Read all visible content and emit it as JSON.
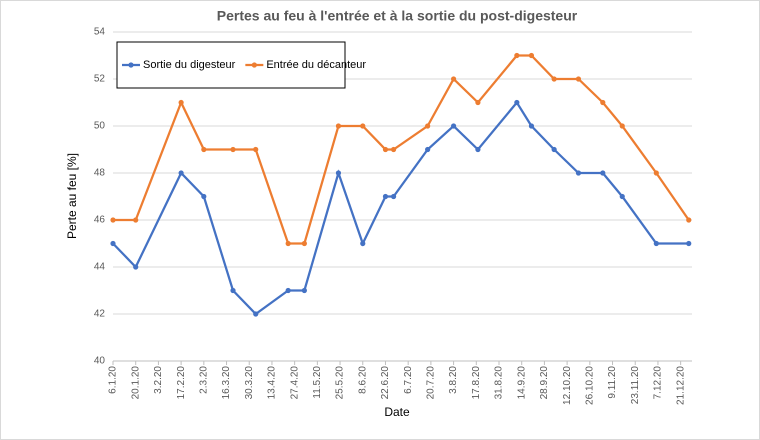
{
  "chart_data": {
    "type": "line",
    "title": "Pertes au feu à l'entrée et à la sortie du post-digesteur",
    "x_label": "Date",
    "y_label": "Perte au feu [%]",
    "x": [
      "6.1.20",
      "20.1.20",
      "17.2.20",
      "2.3.20",
      "20.3.20",
      "3.4.20",
      "23.4.20",
      "3.5.20",
      "24.5.20",
      "8.6.20",
      "22.6.20",
      "27.6.20",
      "18.7.20",
      "3.8.20",
      "18.8.20",
      "11.9.20",
      "20.9.20",
      "4.10.20",
      "19.10.20",
      "3.11.20",
      "15.11.20",
      "6.12.20",
      "26.12.20"
    ],
    "series": [
      {
        "name": "Sortie du digesteur",
        "color": "#4472c4",
        "values": [
          45,
          44,
          48,
          47,
          43,
          42,
          43,
          43,
          48,
          45,
          47,
          47,
          49,
          50,
          49,
          51,
          50,
          49,
          48,
          48,
          47,
          45,
          45
        ]
      },
      {
        "name": "Entrée du décanteur",
        "color": "#ed7d31",
        "values": [
          46,
          46,
          51,
          49,
          49,
          49,
          45,
          45,
          50,
          50,
          49,
          49,
          50,
          52,
          51,
          53,
          53,
          52,
          52,
          51,
          50,
          48,
          46
        ]
      }
    ],
    "xlim": [
      "6.1.20",
      "28.12.20"
    ],
    "xticks": [
      "6.1.20",
      "20.1.20",
      "3.2.20",
      "17.2.20",
      "2.3.20",
      "16.3.20",
      "30.3.20",
      "13.4.20",
      "27.4.20",
      "11.5.20",
      "25.5.20",
      "8.6.20",
      "22.6.20",
      "6.7.20",
      "20.7.20",
      "3.8.20",
      "17.8.20",
      "31.8.20",
      "14.9.20",
      "28.9.20",
      "12.10.20",
      "26.10.20",
      "9.11.20",
      "23.11.20",
      "7.12.20",
      "21.12.20"
    ],
    "ylim": [
      40,
      54
    ],
    "yticks": [
      40,
      42,
      44,
      46,
      48,
      50,
      52,
      54
    ],
    "grid": true,
    "legend": "upper left"
  }
}
